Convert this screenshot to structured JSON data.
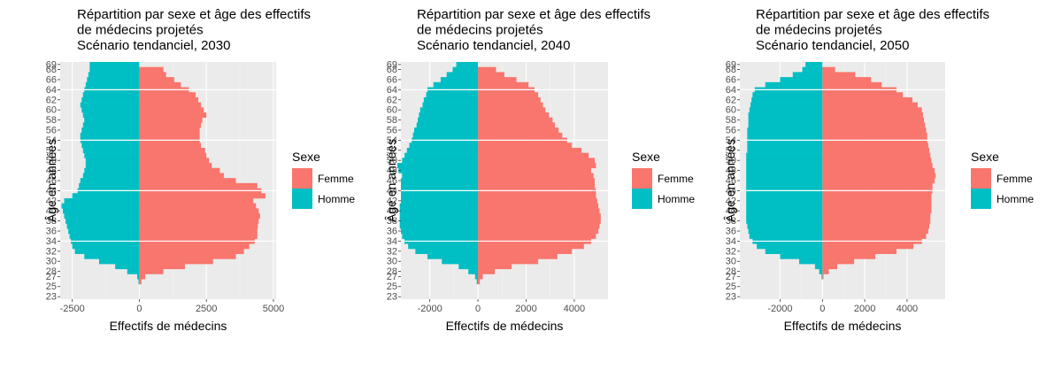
{
  "legend": {
    "title": "Sexe",
    "items": [
      {
        "label": "Femme",
        "color": "#F8766D"
      },
      {
        "label": "Homme",
        "color": "#00BFC4"
      }
    ]
  },
  "chart_data": [
    {
      "type": "bar",
      "orientation": "horizontal",
      "title": "Répartition par sexe et âge des effectifs de médecins projetés Scénario tendanciel, 2030",
      "title_lines": [
        "Répartition par sexe et âge des effectifs",
        "de médecins projetés",
        "Scénario tendanciel, 2030"
      ],
      "xlabel": "Effectifs de médecins",
      "ylabel": "Âge en années",
      "xlim": [
        -2950,
        5100
      ],
      "x_ticks": [
        -2500,
        0,
        2500,
        5000
      ],
      "x_tick_labels": [
        "-2500",
        "0",
        "2500",
        "5000"
      ],
      "ages": [
        23,
        24,
        25,
        26,
        27,
        28,
        29,
        30,
        31,
        32,
        33,
        34,
        35,
        36,
        37,
        38,
        39,
        40,
        41,
        42,
        43,
        44,
        45,
        46,
        47,
        48,
        49,
        50,
        51,
        52,
        53,
        54,
        55,
        56,
        57,
        58,
        59,
        60,
        61,
        62,
        63,
        64,
        65,
        66,
        67,
        68,
        69
      ],
      "series": [
        {
          "name": "Femme",
          "color": "#F8766D",
          "values": [
            0,
            0,
            0,
            80,
            220,
            900,
            1700,
            2750,
            3600,
            3900,
            4100,
            4300,
            4400,
            4400,
            4420,
            4450,
            4500,
            4450,
            4350,
            4250,
            4700,
            4550,
            4400,
            3600,
            3150,
            3000,
            2700,
            2600,
            2500,
            2450,
            2300,
            2250,
            2250,
            2250,
            2300,
            2350,
            2500,
            2400,
            2300,
            2200,
            2100,
            1850,
            1550,
            1300,
            1000,
            900,
            0
          ]
        },
        {
          "name": "Homme",
          "color": "#00BFC4",
          "values": [
            0,
            0,
            0,
            -30,
            -80,
            -450,
            -900,
            -1500,
            -2050,
            -2400,
            -2500,
            -2550,
            -2600,
            -2650,
            -2700,
            -2750,
            -2800,
            -2850,
            -2900,
            -2800,
            -2500,
            -2300,
            -2250,
            -2200,
            -2100,
            -2050,
            -2000,
            -2000,
            -2050,
            -2100,
            -2150,
            -2200,
            -2200,
            -2150,
            -2100,
            -2050,
            -2100,
            -2150,
            -2200,
            -2150,
            -2100,
            -2050,
            -2000,
            -1950,
            -1900,
            -1850,
            -1850
          ]
        }
      ]
    },
    {
      "type": "bar",
      "orientation": "horizontal",
      "title": "Répartition par sexe et âge des effectifs de médecins projetés Scénario tendanciel, 2040",
      "title_lines": [
        "Répartition par sexe et âge des effectifs",
        "de médecins projetés",
        "Scénario tendanciel, 2040"
      ],
      "xlabel": "Effectifs de médecins",
      "ylabel": "Âge en années",
      "xlim": [
        -3200,
        5400
      ],
      "x_ticks": [
        -2000,
        0,
        2000,
        4000
      ],
      "x_tick_labels": [
        "-2000",
        "0",
        "2000",
        "4000"
      ],
      "ages": [
        23,
        24,
        25,
        26,
        27,
        28,
        29,
        30,
        31,
        32,
        33,
        34,
        35,
        36,
        37,
        38,
        39,
        40,
        41,
        42,
        43,
        44,
        45,
        46,
        47,
        48,
        49,
        50,
        51,
        52,
        53,
        54,
        55,
        56,
        57,
        58,
        59,
        60,
        61,
        62,
        63,
        64,
        65,
        66,
        67,
        68,
        69
      ],
      "series": [
        {
          "name": "Femme",
          "color": "#F8766D",
          "values": [
            0,
            0,
            0,
            80,
            200,
            700,
            1400,
            2500,
            3300,
            3900,
            4400,
            4700,
            4900,
            5000,
            5050,
            5100,
            5100,
            5050,
            5000,
            4950,
            4900,
            4900,
            4850,
            4850,
            4800,
            4700,
            4900,
            4850,
            4600,
            4300,
            3900,
            3700,
            3500,
            3350,
            3200,
            3100,
            2950,
            2800,
            2700,
            2600,
            2500,
            2350,
            2100,
            1600,
            1100,
            750,
            0
          ]
        },
        {
          "name": "Homme",
          "color": "#00BFC4",
          "values": [
            0,
            0,
            0,
            -50,
            -120,
            -400,
            -800,
            -1500,
            -2100,
            -2600,
            -2900,
            -3050,
            -3150,
            -3200,
            -3250,
            -3250,
            -3250,
            -3250,
            -3250,
            -3200,
            -3200,
            -3200,
            -3200,
            -3200,
            -3150,
            -3300,
            -3350,
            -3150,
            -3050,
            -2950,
            -2850,
            -2750,
            -2700,
            -2650,
            -2550,
            -2500,
            -2450,
            -2400,
            -2300,
            -2250,
            -2150,
            -2100,
            -1850,
            -1550,
            -1300,
            -1050,
            -900
          ]
        }
      ]
    },
    {
      "type": "bar",
      "orientation": "horizontal",
      "title": "Répartition par sexe et âge des effectifs de médecins projetés Scénario tendanciel, 2050",
      "title_lines": [
        "Répartition par sexe et âge des effectifs",
        "de médecins projetés",
        "Scénario tendanciel, 2050"
      ],
      "xlabel": "Effectifs de médecins",
      "ylabel": "Âge en années",
      "xlim": [
        -3900,
        5800
      ],
      "x_ticks": [
        -2000,
        0,
        2000,
        4000
      ],
      "x_tick_labels": [
        "-2000",
        "0",
        "2000",
        "4000"
      ],
      "ages": [
        23,
        24,
        25,
        26,
        27,
        28,
        29,
        30,
        31,
        32,
        33,
        34,
        35,
        36,
        37,
        38,
        39,
        40,
        41,
        42,
        43,
        44,
        45,
        46,
        47,
        48,
        49,
        50,
        51,
        52,
        53,
        54,
        55,
        56,
        57,
        58,
        59,
        60,
        61,
        62,
        63,
        64,
        65,
        66,
        67,
        68,
        69
      ],
      "series": [
        {
          "name": "Femme",
          "color": "#F8766D",
          "values": [
            0,
            0,
            0,
            0,
            50,
            300,
            700,
            1500,
            2500,
            3500,
            4300,
            4700,
            4900,
            5000,
            5050,
            5100,
            5100,
            5150,
            5150,
            5150,
            5150,
            5200,
            5200,
            5300,
            5350,
            5300,
            5200,
            5150,
            5100,
            5050,
            5000,
            4950,
            4950,
            4900,
            4850,
            4800,
            4750,
            4700,
            4500,
            4250,
            3800,
            3500,
            2800,
            2300,
            1550,
            600,
            0
          ]
        },
        {
          "name": "Homme",
          "color": "#00BFC4",
          "values": [
            0,
            0,
            0,
            0,
            -40,
            -150,
            -350,
            -1100,
            -2000,
            -2700,
            -3100,
            -3300,
            -3450,
            -3500,
            -3550,
            -3600,
            -3600,
            -3600,
            -3600,
            -3600,
            -3600,
            -3600,
            -3600,
            -3600,
            -3600,
            -3600,
            -3600,
            -3600,
            -3600,
            -3550,
            -3550,
            -3550,
            -3550,
            -3550,
            -3500,
            -3500,
            -3500,
            -3450,
            -3400,
            -3350,
            -3300,
            -3200,
            -2700,
            -2000,
            -1400,
            -950,
            -800
          ]
        }
      ]
    }
  ]
}
